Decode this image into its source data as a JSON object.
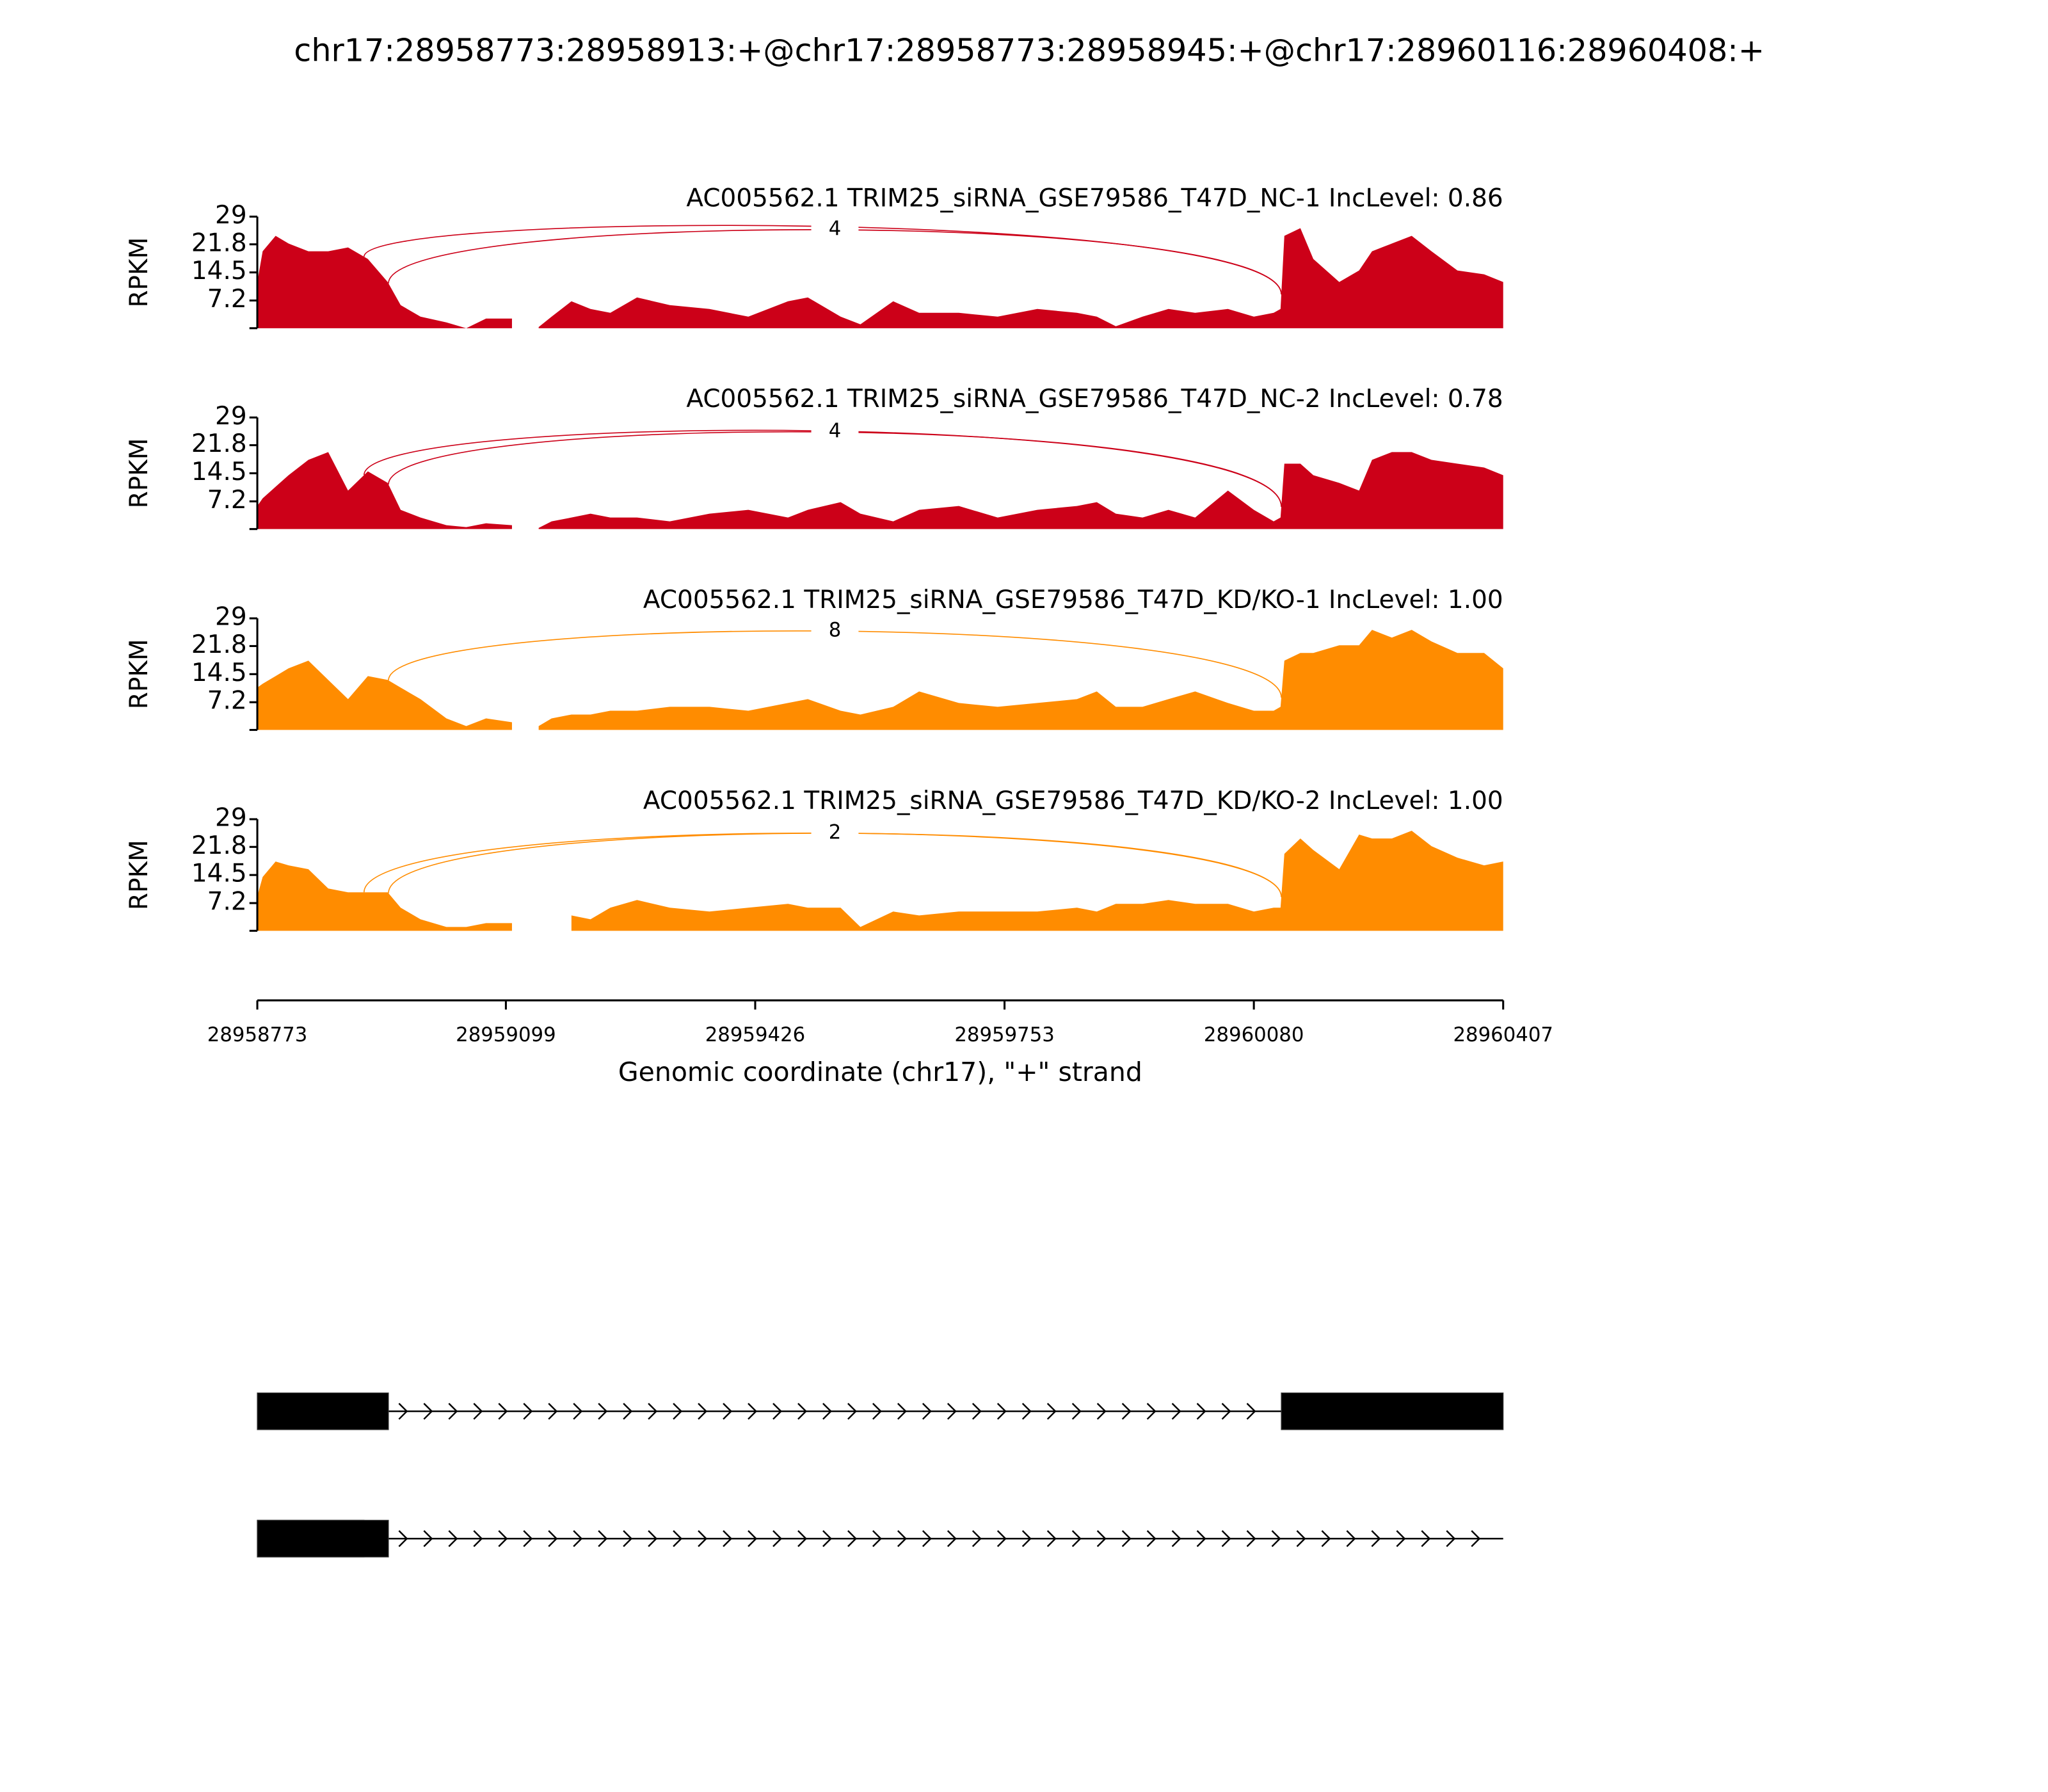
{
  "title": "chr17:28958773:28958913:+@chr17:28958773:28958945:+@chr17:28960116:28960408:+",
  "chart_data": [
    {
      "type": "area",
      "title": "AC005562.1 TRIM25_siRNA_GSE79586_T47D_NC-1 IncLevel: 0.86",
      "ylabel": "RPKM",
      "color": "#cc0018",
      "x": [
        28958773,
        28958780,
        28958797,
        28958814,
        28958840,
        28958866,
        28958892,
        28958918,
        28958944,
        28958961,
        28958987,
        28959021,
        28959047,
        28959073,
        28959107,
        28959116,
        28959124,
        28959142,
        28959159,
        28959185,
        28959210,
        28959236,
        28959271,
        28959314,
        28959366,
        28959417,
        28959469,
        28959495,
        28959538,
        28959564,
        28959607,
        28959641,
        28959693,
        28959744,
        28959796,
        28959848,
        28959874,
        28959899,
        28959934,
        28959968,
        28960003,
        28960046,
        28960080,
        28960106,
        28960115,
        28960120,
        28960141,
        28960158,
        28960192,
        28960218,
        28960235,
        28960261,
        28960287,
        28960313,
        28960347,
        28960382,
        28960407
      ],
      "values": [
        12,
        20,
        24,
        22,
        20,
        20,
        21,
        18,
        12,
        6,
        3,
        1.5,
        0,
        2.5,
        2.5,
        null,
        null,
        0.3,
        3,
        7,
        5,
        4,
        8,
        6,
        5,
        3,
        7,
        8,
        3,
        1,
        7,
        4,
        4,
        3,
        5,
        4,
        3,
        0.5,
        3,
        5,
        4,
        5,
        3,
        4,
        5,
        24,
        26,
        18,
        12,
        15,
        20,
        22,
        24,
        20,
        15,
        14,
        12
      ],
      "xlim": [
        28958773,
        28960407
      ],
      "ylim": [
        0,
        29
      ],
      "yticks": [
        7.2,
        14.5,
        21.8,
        29
      ],
      "junctions": [
        {
          "start": 28958913,
          "end": 28960116
        },
        {
          "start": 28958945,
          "end": 28960116,
          "count": 4
        }
      ]
    },
    {
      "type": "area",
      "title": "AC005562.1 TRIM25_siRNA_GSE79586_T47D_NC-2 IncLevel: 0.78",
      "ylabel": "RPKM",
      "color": "#cc0018",
      "x": [
        28958773,
        28958780,
        28958797,
        28958814,
        28958840,
        28958866,
        28958892,
        28958918,
        28958944,
        28958961,
        28958987,
        28959021,
        28959047,
        28959073,
        28959107,
        28959116,
        28959124,
        28959142,
        28959159,
        28959185,
        28959210,
        28959236,
        28959271,
        28959314,
        28959366,
        28959417,
        28959469,
        28959495,
        28959538,
        28959564,
        28959607,
        28959641,
        28959693,
        28959744,
        28959796,
        28959848,
        28959874,
        28959899,
        28959934,
        28959968,
        28960003,
        28960046,
        28960080,
        28960106,
        28960115,
        28960120,
        28960141,
        28960158,
        28960192,
        28960218,
        28960235,
        28960261,
        28960287,
        28960313,
        28960347,
        28960382,
        28960407
      ],
      "values": [
        6,
        8,
        11,
        14,
        18,
        20,
        10,
        15,
        12,
        5,
        3,
        1,
        0.5,
        1.5,
        1,
        null,
        null,
        0.3,
        2,
        3,
        4,
        3,
        3,
        2,
        4,
        5,
        3,
        5,
        7,
        4,
        2,
        5,
        6,
        3,
        5,
        6,
        7,
        4,
        3,
        5,
        3,
        10,
        5,
        2,
        3,
        17,
        17,
        14,
        12,
        10,
        18,
        20,
        20,
        18,
        17,
        16,
        14
      ],
      "xlim": [
        28958773,
        28960407
      ],
      "ylim": [
        0,
        29
      ],
      "yticks": [
        7.2,
        14.5,
        21.8,
        29
      ],
      "junctions": [
        {
          "start": 28958913,
          "end": 28960116
        },
        {
          "start": 28958945,
          "end": 28960116,
          "count": 4
        }
      ]
    },
    {
      "type": "area",
      "title": "AC005562.1 TRIM25_siRNA_GSE79586_T47D_KD/KO-1 IncLevel: 1.00",
      "ylabel": "RPKM",
      "color": "#ff8c00",
      "x": [
        28958773,
        28958780,
        28958797,
        28958814,
        28958840,
        28958866,
        28958892,
        28958918,
        28958944,
        28958961,
        28958987,
        28959021,
        28959047,
        28959073,
        28959107,
        28959116,
        28959124,
        28959142,
        28959159,
        28959185,
        28959210,
        28959236,
        28959271,
        28959314,
        28959366,
        28959417,
        28959469,
        28959495,
        28959538,
        28959564,
        28959607,
        28959641,
        28959693,
        28959744,
        28959796,
        28959848,
        28959874,
        28959899,
        28959934,
        28959968,
        28960003,
        28960046,
        28960080,
        28960106,
        28960115,
        28960120,
        28960141,
        28960158,
        28960192,
        28960218,
        28960235,
        28960261,
        28960287,
        28960313,
        28960347,
        28960382,
        28960407
      ],
      "values": [
        11,
        12,
        14,
        16,
        18,
        13,
        8,
        14,
        13,
        11,
        8,
        3,
        1,
        3,
        2,
        null,
        null,
        1,
        3,
        4,
        4,
        5,
        5,
        6,
        6,
        5,
        7,
        8,
        5,
        4,
        6,
        10,
        7,
        6,
        7,
        8,
        10,
        6,
        6,
        8,
        10,
        7,
        5,
        5,
        6,
        18,
        20,
        20,
        22,
        22,
        26,
        24,
        26,
        23,
        20,
        20,
        16
      ],
      "xlim": [
        28958773,
        28960407
      ],
      "ylim": [
        0,
        29
      ],
      "yticks": [
        7.2,
        14.5,
        21.8,
        29
      ],
      "junctions": [
        {
          "start": 28958945,
          "end": 28960116,
          "count": 8
        }
      ]
    },
    {
      "type": "area",
      "title": "AC005562.1 TRIM25_siRNA_GSE79586_T47D_KD/KO-2 IncLevel: 1.00",
      "ylabel": "RPKM",
      "color": "#ff8c00",
      "x": [
        28958773,
        28958780,
        28958797,
        28958814,
        28958840,
        28958866,
        28958892,
        28958918,
        28958944,
        28958961,
        28958987,
        28959021,
        28959047,
        28959073,
        28959107,
        28959116,
        28959124,
        28959142,
        28959159,
        28959185,
        28959210,
        28959236,
        28959271,
        28959314,
        28959366,
        28959417,
        28959469,
        28959495,
        28959538,
        28959564,
        28959607,
        28959641,
        28959693,
        28959744,
        28959796,
        28959848,
        28959874,
        28959899,
        28959934,
        28959968,
        28960003,
        28960046,
        28960080,
        28960106,
        28960115,
        28960120,
        28960141,
        28960158,
        28960192,
        28960218,
        28960235,
        28960261,
        28960287,
        28960313,
        28960347,
        28960382,
        28960407
      ],
      "values": [
        9,
        14,
        18,
        17,
        16,
        11,
        10,
        10,
        10,
        6,
        3,
        1,
        1,
        2,
        2,
        null,
        null,
        null,
        null,
        4,
        3,
        6,
        8,
        6,
        5,
        6,
        7,
        6,
        6,
        1,
        5,
        4,
        5,
        5,
        5,
        6,
        5,
        7,
        7,
        8,
        7,
        7,
        5,
        6,
        6,
        20,
        24,
        21,
        16,
        25,
        24,
        24,
        26,
        22,
        19,
        17,
        18
      ],
      "xlim": [
        28958773,
        28960407
      ],
      "ylim": [
        0,
        29
      ],
      "yticks": [
        7.2,
        14.5,
        21.8,
        29
      ],
      "xticks": [
        28958773,
        28959099,
        28959426,
        28959753,
        28960080,
        28960407
      ],
      "xlabel": "Genomic coordinate (chr17), \"+\" strand",
      "junctions": [
        {
          "start": 28958913,
          "end": 28960116
        },
        {
          "start": 28958945,
          "end": 28960116,
          "count": 2
        }
      ]
    },
    {
      "type": "gene-model",
      "xlim": [
        28958773,
        28960407
      ],
      "transcripts": [
        {
          "exons": [
            [
              28958773,
              28958945
            ],
            [
              28960116,
              28960407
            ]
          ]
        },
        {
          "exons": [
            [
              28958773,
              28958913
            ],
            [
              28958773,
              28958945
            ]
          ]
        }
      ]
    }
  ]
}
